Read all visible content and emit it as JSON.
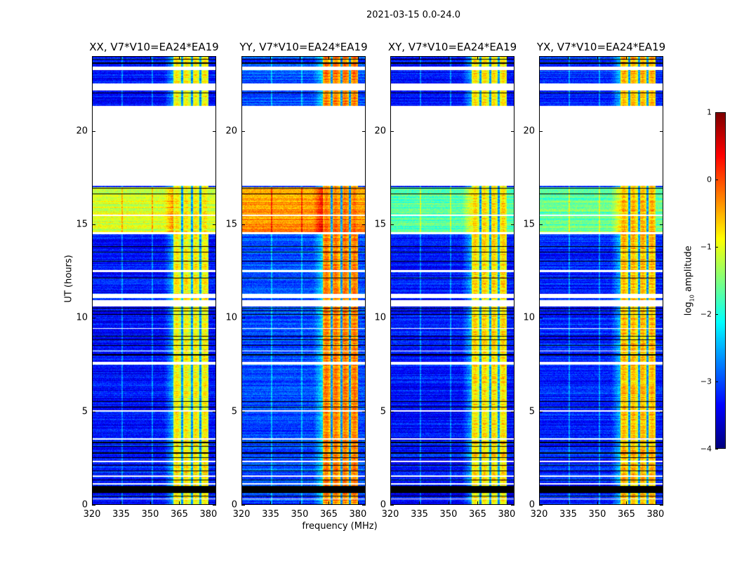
{
  "chart_data": {
    "type": "heatmap",
    "title": "2021-03-15 0.0-24.0",
    "xlabel": "frequency (MHz)",
    "ylabel": "UT (hours)",
    "xlim": [
      320,
      384
    ],
    "ylim": [
      0,
      24
    ],
    "xticks": [
      "320",
      "335",
      "350",
      "365",
      "380"
    ],
    "xtick_values": [
      320,
      335,
      350,
      365,
      380
    ],
    "yticks": [
      "0",
      "5",
      "10",
      "15",
      "20"
    ],
    "ytick_values": [
      0,
      5,
      10,
      15,
      20
    ],
    "colorbar": {
      "label_pre": "log",
      "label_sub": "10",
      "label_post": " amplitude",
      "colormap": "jet",
      "range": [
        -4,
        1
      ],
      "ticks": [
        "1",
        "0",
        "−1",
        "−2",
        "−3",
        "−4"
      ],
      "tick_values": [
        1,
        0,
        -1,
        -2,
        -3,
        -4
      ]
    },
    "bright_band_mhz": [
      362,
      380
    ],
    "flagged_channels_mhz": [
      366.5,
      371.5,
      376
    ],
    "daytime_hours": [
      14.6,
      17.0
    ],
    "white_gaps_hours": [
      [
        23.25,
        23.45
      ],
      [
        22.15,
        22.55
      ],
      [
        17.05,
        21.35
      ],
      [
        11.05,
        11.3
      ],
      [
        10.6,
        10.95
      ],
      [
        7.5,
        7.65
      ],
      [
        14.48,
        14.58
      ],
      [
        12.45,
        12.55
      ],
      [
        15.45,
        15.52
      ],
      [
        5.0,
        5.05
      ],
      [
        3.5,
        3.55
      ],
      [
        1.5,
        1.56
      ],
      [
        1.1,
        1.16
      ],
      [
        0.3,
        0.35
      ],
      [
        2.3,
        2.35
      ],
      [
        9.4,
        9.46
      ],
      [
        8.2,
        8.25
      ]
    ],
    "black_gaps_hours": [
      [
        0.65,
        1.0
      ],
      [
        0.45,
        0.5
      ],
      [
        1.3,
        1.35
      ],
      [
        1.8,
        1.85
      ],
      [
        2.1,
        2.14
      ],
      [
        2.5,
        2.55
      ],
      [
        2.75,
        2.8
      ],
      [
        3.1,
        3.15
      ],
      [
        3.3,
        3.36
      ],
      [
        5.2,
        5.24
      ],
      [
        5.5,
        5.55
      ],
      [
        8.0,
        8.05
      ],
      [
        8.5,
        8.55
      ],
      [
        8.8,
        8.85
      ],
      [
        9.0,
        9.05
      ],
      [
        10.15,
        10.2
      ],
      [
        10.35,
        10.4
      ],
      [
        10.5,
        10.55
      ],
      [
        12.1,
        12.15
      ],
      [
        13.0,
        13.05
      ],
      [
        13.5,
        13.55
      ],
      [
        13.8,
        13.85
      ],
      [
        16.6,
        16.65
      ],
      [
        16.9,
        16.95
      ],
      [
        23.6,
        23.65
      ],
      [
        23.8,
        23.85
      ],
      [
        22.0,
        22.05
      ]
    ],
    "panels": [
      {
        "title": "XX, V7*V10=EA24*EA19",
        "background_log_amp": -3.3,
        "band_log_amp": -1.0,
        "daytime_log_amp": -1.1
      },
      {
        "title": "YY, V7*V10=EA24*EA19",
        "background_log_amp": -3.0,
        "band_log_amp": -0.4,
        "daytime_log_amp": -0.4
      },
      {
        "title": "XY, V7*V10=EA24*EA19",
        "background_log_amp": -3.3,
        "band_log_amp": -0.9,
        "daytime_log_amp": -1.7
      },
      {
        "title": "YX, V7*V10=EA24*EA19",
        "background_log_amp": -3.2,
        "band_log_amp": -0.7,
        "daytime_log_amp": -1.6
      }
    ]
  }
}
